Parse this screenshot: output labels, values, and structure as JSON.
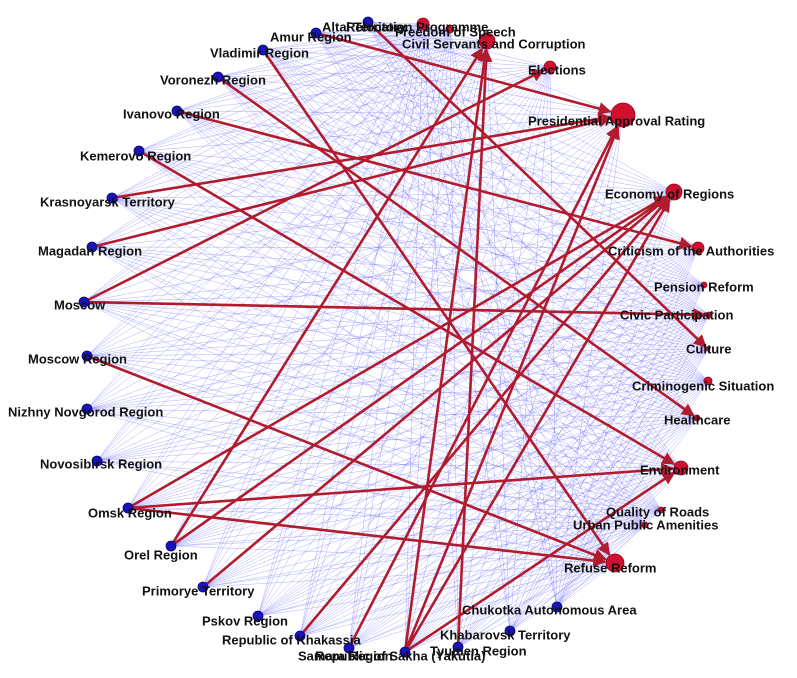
{
  "nodes": [
    {
      "label": "Altai Territory"
    },
    {
      "label": "Amur Region"
    },
    {
      "label": "Vladimir Region"
    },
    {
      "label": "Voronezh Region"
    },
    {
      "label": "Ivanovo Region"
    },
    {
      "label": "Kemerovo Region"
    },
    {
      "label": "Krasnoyarsk Territory"
    },
    {
      "label": "Magadan Region"
    },
    {
      "label": "Moscow"
    },
    {
      "label": "Moscow Region"
    },
    {
      "label": "Nizhny Novgorod Region"
    },
    {
      "label": "Novosibirsk Region"
    },
    {
      "label": "Omsk Region"
    },
    {
      "label": "Orel Region"
    },
    {
      "label": "Primorye Territory"
    },
    {
      "label": "Pskov Region"
    },
    {
      "label": "Republic of Khakassia"
    },
    {
      "label": "Samara Region"
    },
    {
      "label": "Republic of Sakha (Yakutia)"
    },
    {
      "label": "Tyumen Region"
    },
    {
      "label": "Khabarovsk Territory"
    },
    {
      "label": "Chukotka Autonomous Area"
    },
    {
      "label": "Relocation Programme"
    },
    {
      "label": "Freedom of Speech"
    },
    {
      "label": "Civil Servants and Corruption"
    },
    {
      "label": "Elections"
    },
    {
      "label": "Presidential Approval Rating"
    },
    {
      "label": "Economy of Regions"
    },
    {
      "label": "Criticism of the Authorities"
    },
    {
      "label": "Pension Reform"
    },
    {
      "label": "Civic Participation"
    },
    {
      "label": "Culture"
    },
    {
      "label": "Criminogenic Situation"
    },
    {
      "label": "Healthcare"
    },
    {
      "label": "Environment"
    },
    {
      "label": "Quality of Roads"
    },
    {
      "label": "Urban Public Amenities"
    },
    {
      "label": "Refuse Reform"
    }
  ]
}
